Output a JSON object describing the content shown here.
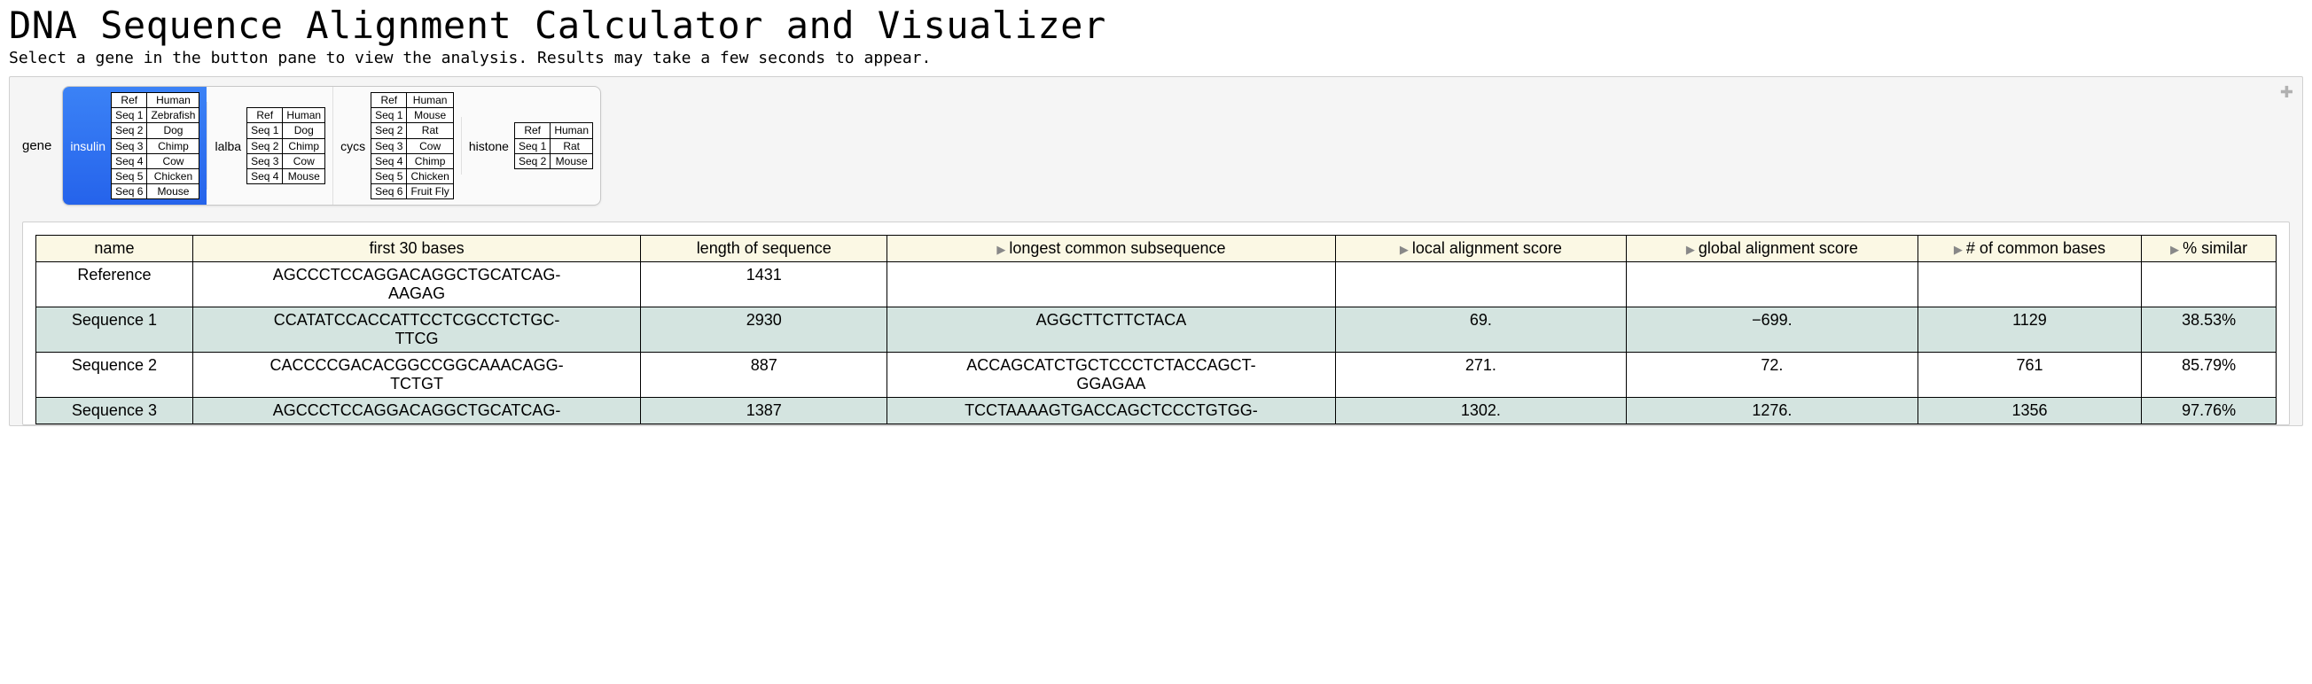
{
  "title": "DNA Sequence Alignment Calculator and Visualizer",
  "subtitle": "Select a gene in the button pane to view the analysis. Results may take a few seconds to appear.",
  "plus_icon": "✦",
  "gene_label": "gene",
  "genes": [
    {
      "key": "insulin",
      "label": "insulin",
      "selected": true,
      "rows": [
        [
          "Ref",
          "Human"
        ],
        [
          "Seq 1",
          "Zebrafish"
        ],
        [
          "Seq 2",
          "Dog"
        ],
        [
          "Seq 3",
          "Chimp"
        ],
        [
          "Seq 4",
          "Cow"
        ],
        [
          "Seq 5",
          "Chicken"
        ],
        [
          "Seq 6",
          "Mouse"
        ]
      ]
    },
    {
      "key": "lalba",
      "label": "lalba",
      "selected": false,
      "rows": [
        [
          "Ref",
          "Human"
        ],
        [
          "Seq 1",
          "Dog"
        ],
        [
          "Seq 2",
          "Chimp"
        ],
        [
          "Seq 3",
          "Cow"
        ],
        [
          "Seq 4",
          "Mouse"
        ]
      ]
    },
    {
      "key": "cycs",
      "label": "cycs",
      "selected": false,
      "rows": [
        [
          "Ref",
          "Human"
        ],
        [
          "Seq 1",
          "Mouse"
        ],
        [
          "Seq 2",
          "Rat"
        ],
        [
          "Seq 3",
          "Cow"
        ],
        [
          "Seq 4",
          "Chimp"
        ],
        [
          "Seq 5",
          "Chicken"
        ],
        [
          "Seq 6",
          "Fruit Fly"
        ]
      ]
    },
    {
      "key": "histone",
      "label": "histone",
      "selected": false,
      "rows": [
        [
          "Ref",
          "Human"
        ],
        [
          "Seq 1",
          "Rat"
        ],
        [
          "Seq 2",
          "Mouse"
        ]
      ]
    }
  ],
  "results": {
    "columns": [
      {
        "label": "name",
        "tri": false
      },
      {
        "label": "first 30 bases",
        "tri": false
      },
      {
        "label": "length of sequence",
        "tri": false
      },
      {
        "label": "longest common subsequence",
        "tri": true
      },
      {
        "label": "local alignment score",
        "tri": true
      },
      {
        "label": "global alignment score",
        "tri": true
      },
      {
        "label": "# of common bases",
        "tri": true
      },
      {
        "label": "% similar",
        "tri": true
      }
    ],
    "rows": [
      {
        "alt": false,
        "name": "Reference",
        "bases": "AGCCCTCCAGGACAGGCTGCATCAG-AAGAG",
        "length": "1431",
        "lcs": "",
        "local": "",
        "global": "",
        "common": "",
        "similar": ""
      },
      {
        "alt": true,
        "name": "Sequence 1",
        "bases": "CCATATCCACCATTCCTCGCCTCTGC-TTCG",
        "length": "2930",
        "lcs": "AGGCTTCTTCTACA",
        "local": "69.",
        "global": "−699.",
        "common": "1129",
        "similar": "38.53%"
      },
      {
        "alt": false,
        "name": "Sequence 2",
        "bases": "CACCCCGACACGGCCGGCAAACAGG-TCTGT",
        "length": "887",
        "lcs": "ACCAGCATCTGCTCCCTCTACCAGCT-GGAGAA",
        "local": "271.",
        "global": "72.",
        "common": "761",
        "similar": "85.79%"
      },
      {
        "alt": true,
        "name": "Sequence 3",
        "bases": "AGCCCTCCAGGACAGGCTGCATCAG-",
        "length": "1387",
        "lcs": "TCCTAAAAGTGACCAGCTCCCTGTGG-",
        "local": "1302.",
        "global": "1276.",
        "common": "1356",
        "similar": "97.76%"
      }
    ]
  },
  "tri_glyph": "▶"
}
